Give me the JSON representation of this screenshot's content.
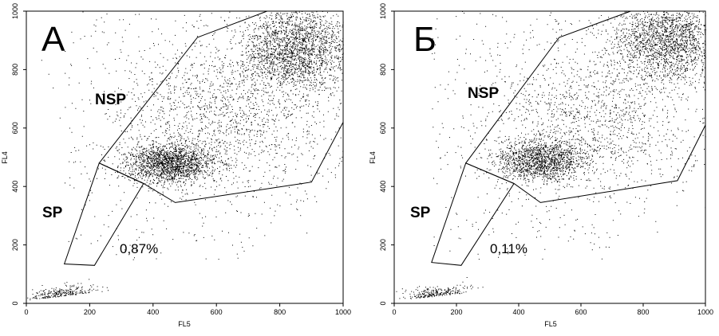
{
  "figure": {
    "panels": [
      {
        "panel_label": "А",
        "percent_label": "0,87%"
      },
      {
        "panel_label": "Б",
        "percent_label": "0,11%"
      }
    ]
  },
  "chart_data": [
    {
      "type": "scatter",
      "title": "А",
      "xlabel": "FL5",
      "ylabel": "FL4",
      "xlim": [
        0,
        1000
      ],
      "ylim": [
        0,
        1000
      ],
      "x_ticks": [
        "0",
        "200",
        "400",
        "600",
        "800",
        "1000"
      ],
      "y_ticks": [
        "0",
        "200",
        "400",
        "600",
        "800",
        "1000"
      ],
      "grid": false,
      "density_clusters": [
        {
          "x": 450,
          "y": 480,
          "count": 1800
        },
        {
          "x": 850,
          "y": 870,
          "count": 2200
        },
        {
          "x": 620,
          "y": 640,
          "count": 1500
        },
        {
          "x": 110,
          "y": 25,
          "count": 260
        }
      ],
      "gates": [
        {
          "name": "NSP",
          "vertices": [
            [
              230,
              480
            ],
            [
              540,
              910
            ],
            [
              760,
              1000
            ],
            [
              1000,
              1000
            ],
            [
              1000,
              620
            ],
            [
              900,
              415
            ],
            [
              470,
              345
            ],
            [
              370,
              410
            ]
          ]
        },
        {
          "name": "SP",
          "vertices": [
            [
              230,
              480
            ],
            [
              370,
              410
            ],
            [
              215,
              130
            ],
            [
              120,
              135
            ]
          ],
          "percent": "0,87%"
        }
      ]
    },
    {
      "type": "scatter",
      "title": "Б",
      "xlabel": "FL5",
      "ylabel": "FL4",
      "xlim": [
        0,
        1000
      ],
      "ylim": [
        0,
        1000
      ],
      "x_ticks": [
        "0",
        "200",
        "400",
        "600",
        "800",
        "1000"
      ],
      "y_ticks": [
        "0",
        "200",
        "400",
        "600",
        "800",
        "1000"
      ],
      "grid": false,
      "density_clusters": [
        {
          "x": 470,
          "y": 490,
          "count": 1500
        },
        {
          "x": 880,
          "y": 900,
          "count": 2000
        },
        {
          "x": 640,
          "y": 650,
          "count": 1300
        },
        {
          "x": 130,
          "y": 25,
          "count": 240
        }
      ],
      "gates": [
        {
          "name": "NSP",
          "vertices": [
            [
              230,
              480
            ],
            [
              530,
              910
            ],
            [
              760,
              1000
            ],
            [
              1000,
              1000
            ],
            [
              1000,
              610
            ],
            [
              910,
              420
            ],
            [
              470,
              345
            ],
            [
              385,
              410
            ]
          ]
        },
        {
          "name": "SP",
          "vertices": [
            [
              230,
              480
            ],
            [
              385,
              410
            ],
            [
              215,
              130
            ],
            [
              120,
              140
            ]
          ],
          "percent": "0,11%"
        }
      ]
    }
  ]
}
